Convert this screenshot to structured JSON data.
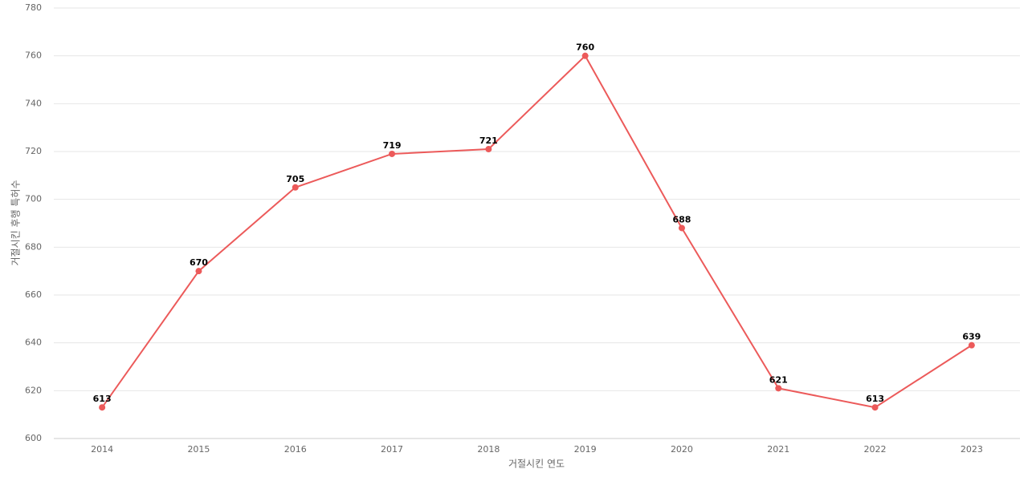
{
  "chart_data": {
    "type": "line",
    "x_label": "거절시킨 연도",
    "y_label": "거절시킨 후행 특허수",
    "categories": [
      "2014",
      "2015",
      "2016",
      "2017",
      "2018",
      "2019",
      "2020",
      "2021",
      "2022",
      "2023"
    ],
    "values": [
      613,
      670,
      705,
      719,
      721,
      760,
      688,
      621,
      613,
      639
    ],
    "color": "#ec5a5a",
    "ylim": [
      600,
      780
    ],
    "yticks": [
      600,
      620,
      640,
      660,
      680,
      700,
      720,
      740,
      760,
      780
    ],
    "grid": true
  }
}
